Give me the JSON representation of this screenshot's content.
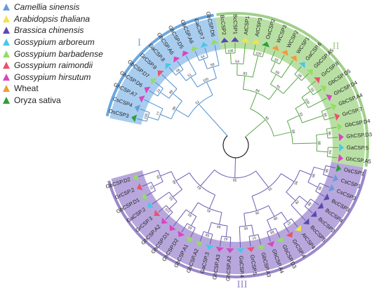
{
  "legend": [
    {
      "label": "Camellia sinensis",
      "color": "#6a9bd8",
      "italic": true
    },
    {
      "label": "Arabidopsis thaliana",
      "color": "#f2e24a",
      "italic": true
    },
    {
      "label": "Brassica chinensis",
      "color": "#5b49b0",
      "italic": true
    },
    {
      "label": "Gossypium arboreum",
      "color": "#49c7e8",
      "italic": true
    },
    {
      "label": "Gossypium barbadense",
      "color": "#94dc63",
      "italic": true
    },
    {
      "label": "Gossypium raimondii",
      "color": "#e9546b",
      "italic": true
    },
    {
      "label": "Gossypium hirsutum",
      "color": "#d845c0",
      "italic": true
    },
    {
      "label": "Wheat",
      "color": "#f39a3a",
      "italic": false
    },
    {
      "label": "Oryza sativa",
      "color": "#2f9e3a",
      "italic": false
    }
  ],
  "groups": [
    {
      "label": "I",
      "color": "#6aa8df",
      "fill": "#a9cdef",
      "branch": "#4f8fd0"
    },
    {
      "label": "II",
      "color": "#9fd08a",
      "fill": "#b9e0a4",
      "branch": "#5aa64a"
    },
    {
      "label": "III",
      "color": "#9b88c9",
      "fill": "#b7a7dc",
      "branch": "#6c5ab5"
    }
  ],
  "leaves": [
    {
      "name": "OsCSP3",
      "species": "Oryza sativa",
      "group": 0
    },
    {
      "name": "CsCSP4",
      "species": "Camellia sinensis",
      "group": 0
    },
    {
      "name": "GhCSP.A7",
      "species": "Gossypium hirsutum",
      "group": 0
    },
    {
      "name": "GhCSP.D6",
      "species": "Gossypium hirsutum",
      "group": 0
    },
    {
      "name": "GbCSP.D7",
      "species": "Gossypium barbadense",
      "group": 0
    },
    {
      "name": "GrCSP.9",
      "species": "Gossypium raimondii",
      "group": 0
    },
    {
      "name": "GaCSP.8",
      "species": "Gossypium arboreum",
      "group": 0
    },
    {
      "name": "GhCSP.A6",
      "species": "Gossypium hirsutum",
      "group": 0
    },
    {
      "name": "GhCSP.D5",
      "species": "Gossypium hirsutum",
      "group": 0
    },
    {
      "name": "GbCSP.A6",
      "species": "Gossypium barbadense",
      "group": 0
    },
    {
      "name": "GaCSP.7",
      "species": "Gossypium arboreum",
      "group": 0
    },
    {
      "name": "GbCSP.D6",
      "species": "Gossypium barbadense",
      "group": 0
    },
    {
      "name": "BcCSP2",
      "species": "Brassica chinensis",
      "group": 1
    },
    {
      "name": "BcCSP1",
      "species": "Brassica chinensis",
      "group": 1
    },
    {
      "name": "AtCSP1",
      "species": "Arabidopsis thaliana",
      "group": 1
    },
    {
      "name": "AtCSP3",
      "species": "Arabidopsis thaliana",
      "group": 1
    },
    {
      "name": "OsCSP2",
      "species": "Oryza sativa",
      "group": 1
    },
    {
      "name": "WCSP3",
      "species": "Wheat",
      "group": 1
    },
    {
      "name": "WCSP2",
      "species": "Wheat",
      "group": 1
    },
    {
      "name": "WCSP1",
      "species": "Wheat",
      "group": 1
    },
    {
      "name": "GaCSP.6",
      "species": "Gossypium arboreum",
      "group": 1
    },
    {
      "name": "GbCSP.A5",
      "species": "Gossypium barbadense",
      "group": 1
    },
    {
      "name": "GrCSP.8",
      "species": "Gossypium raimondii",
      "group": 1
    },
    {
      "name": "GbCSP.D5",
      "species": "Gossypium barbadense",
      "group": 1
    },
    {
      "name": "GhCSP.D4",
      "species": "Gossypium hirsutum",
      "group": 1
    },
    {
      "name": "GbCSP.A4",
      "species": "Gossypium barbadense",
      "group": 1
    },
    {
      "name": "GrCSP.7",
      "species": "Gossypium raimondii",
      "group": 1
    },
    {
      "name": "GbCSP.D4",
      "species": "Gossypium barbadense",
      "group": 1
    },
    {
      "name": "GhCSP.D3",
      "species": "Gossypium hirsutum",
      "group": 1
    },
    {
      "name": "GaCSP.5",
      "species": "Gossypium arboreum",
      "group": 1
    },
    {
      "name": "GhCSP.A5",
      "species": "Gossypium hirsutum",
      "group": 1
    },
    {
      "name": "OsCSP1",
      "species": "Oryza sativa",
      "group": 2
    },
    {
      "name": "CsCSP1",
      "species": "Camellia sinensis",
      "group": 2
    },
    {
      "name": "CsCSP3",
      "species": "Camellia sinensis",
      "group": 2
    },
    {
      "name": "BcCSP3",
      "species": "Brassica chinensis",
      "group": 2
    },
    {
      "name": "BcCSP4",
      "species": "Brassica chinensis",
      "group": 2
    },
    {
      "name": "BcCSP2",
      "species": "Brassica chinensis",
      "group": 2
    },
    {
      "name": "BcCSP5",
      "species": "Brassica chinensis",
      "group": 2
    },
    {
      "name": "AtCSP4",
      "species": "Arabidopsis thaliana",
      "group": 2
    },
    {
      "name": "GrCSP.4",
      "species": "Gossypium raimondii",
      "group": 2
    },
    {
      "name": "GbCSP.D3",
      "species": "Gossypium barbadense",
      "group": 2
    },
    {
      "name": "GhCSP.A4",
      "species": "Gossypium hirsutum",
      "group": 2
    },
    {
      "name": "GbCSP.A3",
      "species": "Gossypium barbadense",
      "group": 2
    },
    {
      "name": "GrCSP.5",
      "species": "Gossypium raimondii",
      "group": 2
    },
    {
      "name": "GaCSP.4",
      "species": "Gossypium arboreum",
      "group": 2
    },
    {
      "name": "GhCSP.A2",
      "species": "Gossypium hirsutum",
      "group": 2
    },
    {
      "name": "GhCSP.A3",
      "species": "Gossypium hirsutum",
      "group": 2
    },
    {
      "name": "GaCSP.3",
      "species": "Gossypium arboreum",
      "group": 2
    },
    {
      "name": "GbCSP.A2",
      "species": "Gossypium barbadense",
      "group": 2
    },
    {
      "name": "GbCSP.A1",
      "species": "Gossypium barbadense",
      "group": 2
    },
    {
      "name": "GhCSP.D2",
      "species": "Gossypium hirsutum",
      "group": 2
    },
    {
      "name": "GhCSP.D1",
      "species": "Gossypium hirsutum",
      "group": 2
    },
    {
      "name": "GhCSP.A2",
      "species": "Gossypium hirsutum",
      "group": 2
    },
    {
      "name": "GrCSP.3",
      "species": "Gossypium raimondii",
      "group": 2
    },
    {
      "name": "GaCSP.2",
      "species": "Gossypium arboreum",
      "group": 2
    },
    {
      "name": "GbCSP.D1",
      "species": "Gossypium barbadense",
      "group": 2
    },
    {
      "name": "GrCSP.2",
      "species": "Gossypium raimondii",
      "group": 2
    },
    {
      "name": "GbCSP.D2",
      "species": "Gossypium barbadense",
      "group": 2
    }
  ],
  "bootstrap": [
    "100",
    "77",
    "23",
    "99",
    "96",
    "58",
    "51",
    "54",
    "58",
    "100",
    "52",
    "100",
    "54",
    "100",
    "83",
    "33",
    "59",
    "98",
    "91",
    "84",
    "59",
    "100",
    "96",
    "91",
    "96",
    "94",
    "98",
    "58",
    "92",
    "96",
    "88",
    "96",
    "66",
    "28",
    "95",
    "87",
    "88",
    "98",
    "57",
    "95",
    "38",
    "91",
    "42",
    "58",
    "99",
    "65",
    "92",
    "81",
    "100",
    "55",
    "61",
    "95",
    "66",
    "63",
    "38",
    "32",
    "99",
    "78",
    "21",
    "12",
    "61",
    "89",
    "52",
    "51",
    "30",
    "76",
    "100"
  ]
}
